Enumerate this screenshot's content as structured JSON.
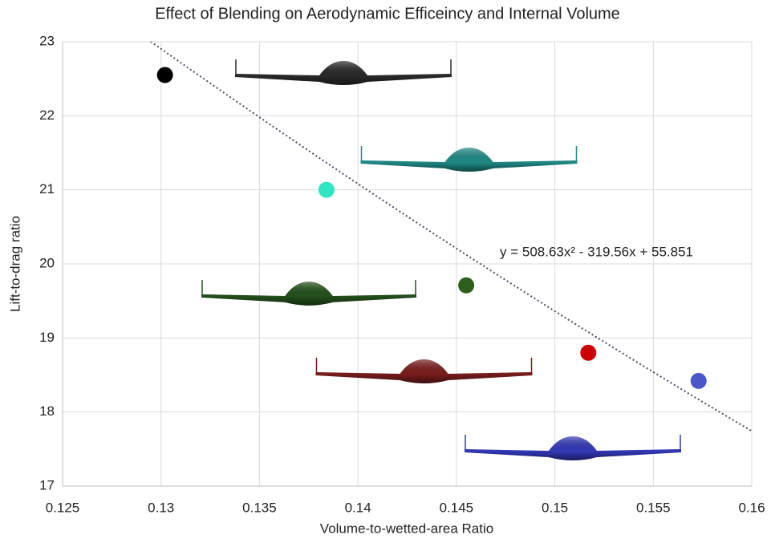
{
  "chart_data": {
    "type": "scatter",
    "title": "Effect of Blending on Aerodynamic Efficeincy and Internal Volume",
    "x_label": "Volume-to-wetted-area Ratio",
    "y_label": "Lift-to-drag ratio",
    "x": [
      0.1302,
      0.1384,
      0.1455,
      0.1517,
      0.1573
    ],
    "values": [
      22.55,
      21.0,
      19.71,
      18.8,
      18.42
    ],
    "colors": [
      "#000000",
      "#2ee6c4",
      "#2f5f1c",
      "#cc0000",
      "#4a57c8"
    ],
    "xlim": [
      0.125,
      0.16
    ],
    "xticks": [
      0.125,
      0.13,
      0.135,
      0.14,
      0.145,
      0.15,
      0.155,
      0.16
    ],
    "ylim": [
      17,
      23
    ],
    "yticks": [
      17,
      18,
      19,
      20,
      21,
      22,
      23
    ],
    "grid": true,
    "trendline": {
      "coefficients": [
        508.63,
        -319.56,
        55.851
      ],
      "label": "y = 508.63x² - 319.56x + 55.851",
      "color": "#4a4f66"
    }
  }
}
